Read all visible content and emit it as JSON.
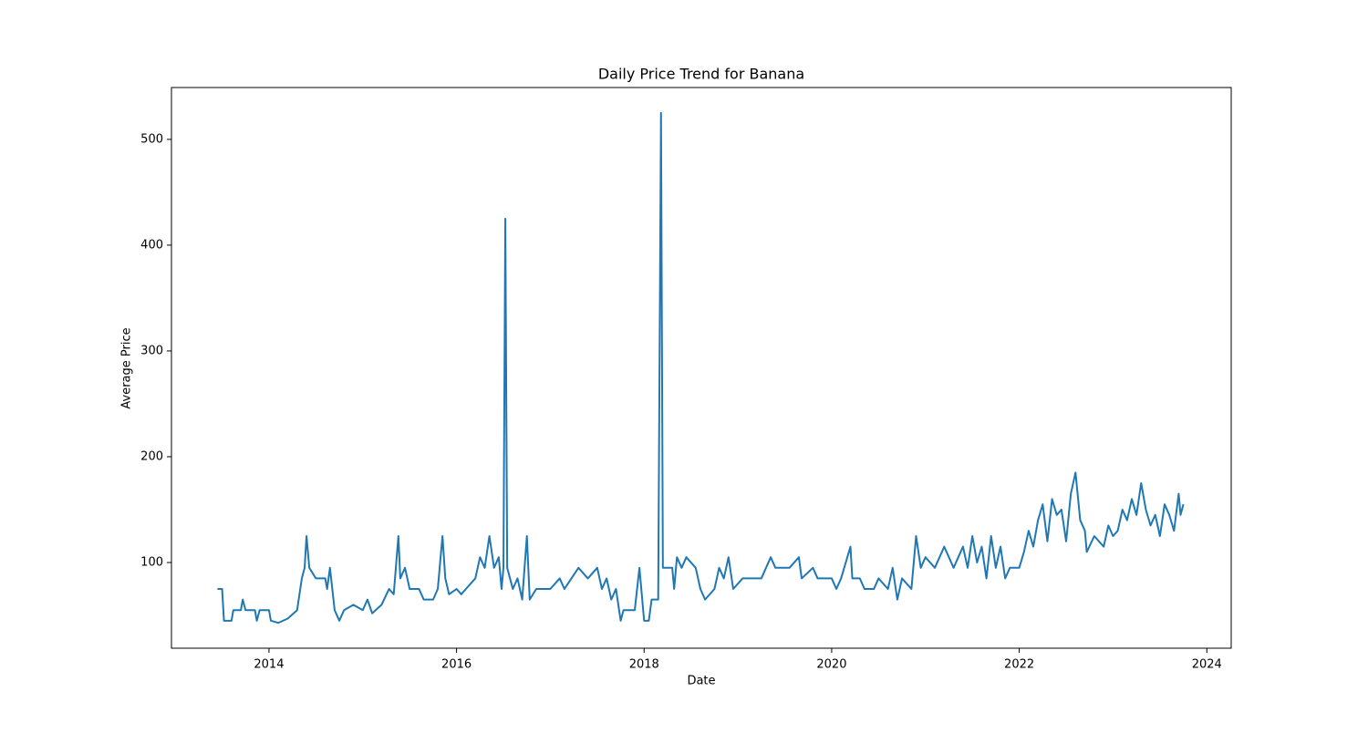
{
  "chart_data": {
    "type": "line",
    "title": "Daily Price Trend for Banana",
    "x_label": "Date",
    "y_label": "Average Price",
    "x": [
      2013.45,
      2013.5,
      2013.52,
      2013.6,
      2013.62,
      2013.7,
      2013.72,
      2013.75,
      2013.85,
      2013.87,
      2013.9,
      2014.0,
      2014.02,
      2014.1,
      2014.2,
      2014.3,
      2014.35,
      2014.38,
      2014.4,
      2014.43,
      2014.5,
      2014.6,
      2014.62,
      2014.65,
      2014.7,
      2014.75,
      2014.8,
      2014.9,
      2015.0,
      2015.05,
      2015.1,
      2015.2,
      2015.28,
      2015.33,
      2015.38,
      2015.4,
      2015.45,
      2015.5,
      2015.6,
      2015.65,
      2015.75,
      2015.8,
      2015.85,
      2015.88,
      2015.92,
      2016.0,
      2016.05,
      2016.1,
      2016.2,
      2016.25,
      2016.3,
      2016.35,
      2016.4,
      2016.45,
      2016.48,
      2016.5,
      2016.52,
      2016.54,
      2016.6,
      2016.65,
      2016.7,
      2016.75,
      2016.78,
      2016.85,
      2017.0,
      2017.1,
      2017.15,
      2017.3,
      2017.4,
      2017.5,
      2017.55,
      2017.6,
      2017.65,
      2017.7,
      2017.75,
      2017.78,
      2017.9,
      2017.95,
      2018.0,
      2018.05,
      2018.08,
      2018.15,
      2018.18,
      2018.2,
      2018.3,
      2018.32,
      2018.35,
      2018.4,
      2018.45,
      2018.55,
      2018.6,
      2018.65,
      2018.75,
      2018.8,
      2018.85,
      2018.9,
      2018.95,
      2019.05,
      2019.25,
      2019.3,
      2019.35,
      2019.4,
      2019.55,
      2019.65,
      2019.68,
      2019.8,
      2019.85,
      2020.0,
      2020.05,
      2020.1,
      2020.2,
      2020.22,
      2020.3,
      2020.35,
      2020.45,
      2020.5,
      2020.6,
      2020.65,
      2020.7,
      2020.75,
      2020.85,
      2020.88,
      2020.9,
      2020.95,
      2021.0,
      2021.1,
      2021.2,
      2021.3,
      2021.4,
      2021.45,
      2021.5,
      2021.55,
      2021.6,
      2021.65,
      2021.7,
      2021.75,
      2021.8,
      2021.85,
      2021.9,
      2022.0,
      2022.05,
      2022.1,
      2022.15,
      2022.2,
      2022.25,
      2022.3,
      2022.35,
      2022.4,
      2022.45,
      2022.5,
      2022.55,
      2022.6,
      2022.65,
      2022.7,
      2022.72,
      2022.8,
      2022.9,
      2022.95,
      2023.0,
      2023.05,
      2023.1,
      2023.15,
      2023.2,
      2023.25,
      2023.3,
      2023.35,
      2023.4,
      2023.45,
      2023.5,
      2023.55,
      2023.6,
      2023.65,
      2023.7,
      2023.72,
      2023.75
    ],
    "series": [
      {
        "name": "Average Price",
        "color": "#1f77b4",
        "values": [
          75,
          75,
          45,
          45,
          55,
          55,
          65,
          55,
          55,
          45,
          55,
          55,
          45,
          43,
          47,
          55,
          85,
          95,
          125,
          95,
          85,
          85,
          75,
          95,
          55,
          45,
          55,
          60,
          55,
          65,
          52,
          60,
          75,
          70,
          125,
          85,
          95,
          75,
          75,
          65,
          65,
          75,
          125,
          85,
          70,
          75,
          70,
          75,
          85,
          105,
          95,
          125,
          95,
          105,
          75,
          95,
          425,
          95,
          75,
          85,
          65,
          125,
          65,
          75,
          75,
          85,
          75,
          95,
          85,
          95,
          75,
          85,
          65,
          75,
          45,
          55,
          55,
          95,
          45,
          45,
          65,
          65,
          525,
          95,
          95,
          75,
          105,
          95,
          105,
          95,
          75,
          65,
          75,
          95,
          85,
          105,
          75,
          85,
          85,
          95,
          105,
          95,
          95,
          105,
          85,
          95,
          85,
          85,
          75,
          85,
          115,
          85,
          85,
          75,
          75,
          85,
          75,
          95,
          65,
          85,
          75,
          105,
          125,
          95,
          105,
          95,
          115,
          95,
          115,
          95,
          125,
          100,
          115,
          85,
          125,
          95,
          115,
          85,
          95,
          95,
          110,
          130,
          115,
          140,
          155,
          120,
          160,
          145,
          150,
          120,
          165,
          185,
          140,
          130,
          110,
          125,
          115,
          135,
          125,
          130,
          150,
          140,
          160,
          145,
          175,
          150,
          135,
          145,
          125,
          155,
          145,
          130,
          165,
          145,
          155
        ]
      }
    ],
    "xlim": [
      2012.96,
      2024.26
    ],
    "xticks": [
      2014,
      2016,
      2018,
      2020,
      2022,
      2024
    ],
    "ylim": [
      19,
      549
    ],
    "yticks": [
      100,
      200,
      300,
      400,
      500
    ]
  }
}
